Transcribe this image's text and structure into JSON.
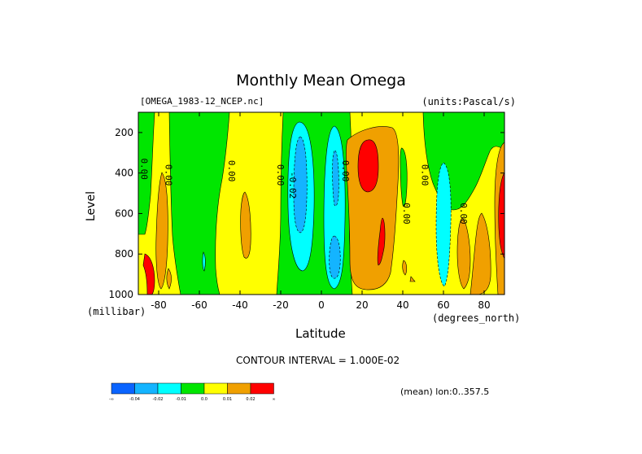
{
  "chart_data": {
    "type": "heatmap",
    "title": "Monthly Mean Omega",
    "dataset": "[OMEGA_1983-12_NCEP.nc]",
    "units": "(units:Pascal/s)",
    "xlabel": "Latitude",
    "ylabel": "Level",
    "x_unit": "(degrees_north)",
    "y_unit": "(millibar)",
    "xlim": [
      -90,
      90
    ],
    "ylim": [
      1000,
      100
    ],
    "x_ticks": [
      -80,
      -60,
      -40,
      -20,
      0,
      20,
      40,
      60,
      80
    ],
    "x_tick_labels": [
      "-80",
      "-60",
      "-40",
      "-20",
      "0",
      "20",
      "40",
      "60",
      "80"
    ],
    "y_ticks": [
      200,
      400,
      600,
      800,
      1000
    ],
    "y_tick_labels": [
      "200",
      "400",
      "600",
      "800",
      "1000"
    ],
    "contour_interval": "CONTOUR INTERVAL = 1.000E-02",
    "averaging": "(mean) lon:0..357.5",
    "contour_labels": [
      {
        "text": "0.00",
        "lat": -87,
        "lev": 380
      },
      {
        "text": "0.00",
        "lat": -75,
        "lev": 410
      },
      {
        "text": "0.00",
        "lat": -44,
        "lev": 390
      },
      {
        "text": "0.00",
        "lat": -20,
        "lev": 410
      },
      {
        "text": "-0.02",
        "lat": -14,
        "lev": 460
      },
      {
        "text": "0.00",
        "lat": 12,
        "lev": 390
      },
      {
        "text": "0.00",
        "lat": 42,
        "lev": 600
      },
      {
        "text": "0.00",
        "lat": 51,
        "lev": 410
      },
      {
        "text": "0.00",
        "lat": 70,
        "lev": 600
      }
    ],
    "colorbar": {
      "levels": [
        "-∞",
        "-0.04",
        "-0.02",
        "-0.01",
        "0.0",
        "0.01",
        "0.02",
        "∞"
      ],
      "colors": [
        "#0a64ff",
        "#14b4ff",
        "#00ffff",
        "#00e600",
        "#ffff00",
        "#f0a000",
        "#ff0000"
      ]
    }
  },
  "colors": {
    "red": "#ff0000",
    "orange": "#f0a000",
    "yellow": "#ffff00",
    "green": "#00e600",
    "cyan": "#00ffff",
    "lightblue": "#14b4ff",
    "blue": "#0a64ff"
  }
}
